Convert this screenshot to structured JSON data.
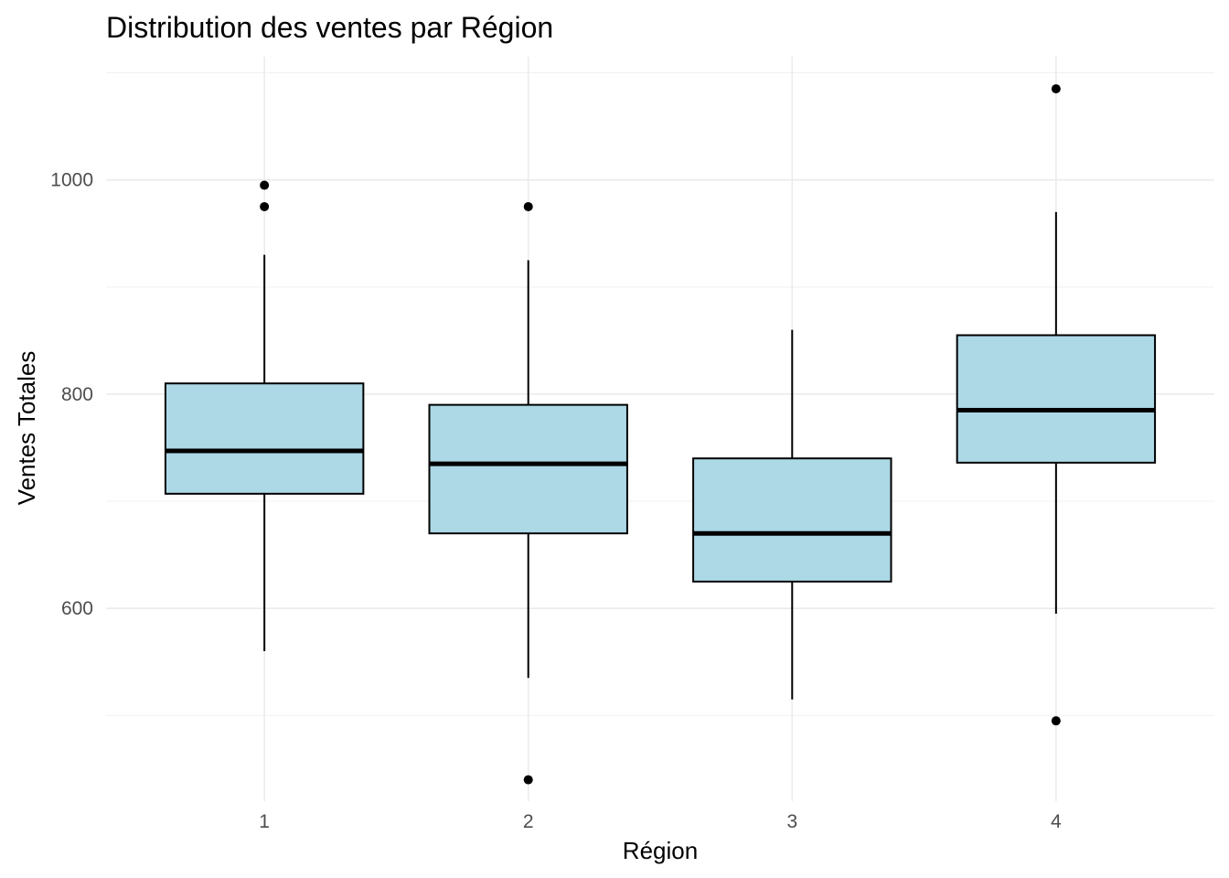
{
  "chart_data": {
    "type": "boxplot",
    "title": "Distribution des ventes par Région",
    "xlabel": "Région",
    "ylabel": "Ventes Totales",
    "categories": [
      "1",
      "2",
      "3",
      "4"
    ],
    "y_ticks": [
      600,
      800,
      1000
    ],
    "y_tick_labels": [
      "600",
      "800",
      "1000"
    ],
    "ylim": [
      420,
      1115
    ],
    "grid": true,
    "box_color": "#add8e6",
    "outline_color": "#000000",
    "boxes": [
      {
        "category": "1",
        "whisker_low": 560,
        "q1": 707,
        "median": 747,
        "q3": 810,
        "whisker_high": 930,
        "outliers": [
          975,
          995
        ]
      },
      {
        "category": "2",
        "whisker_low": 535,
        "q1": 670,
        "median": 735,
        "q3": 790,
        "whisker_high": 925,
        "outliers": [
          975,
          440
        ]
      },
      {
        "category": "3",
        "whisker_low": 515,
        "q1": 625,
        "median": 670,
        "q3": 740,
        "whisker_high": 860,
        "outliers": []
      },
      {
        "category": "4",
        "whisker_low": 595,
        "q1": 736,
        "median": 785,
        "q3": 855,
        "whisker_high": 970,
        "outliers": [
          1085,
          495
        ]
      }
    ]
  }
}
